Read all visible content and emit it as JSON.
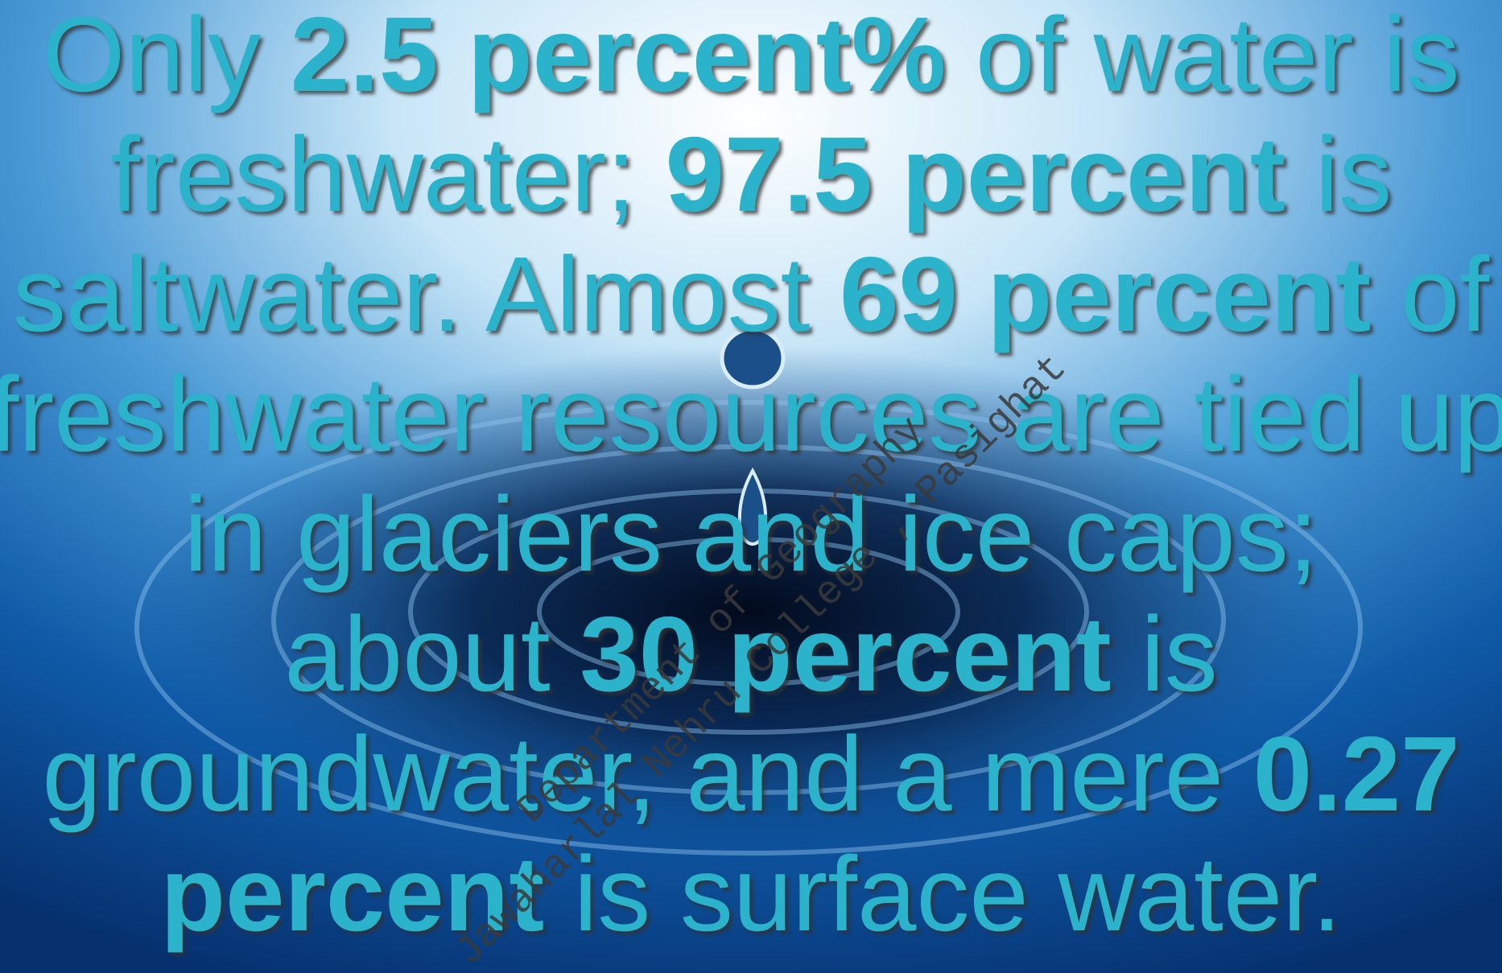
{
  "slide": {
    "lines": [
      [
        {
          "text": "Only ",
          "bold": false
        },
        {
          "text": "2.5 percent%",
          "bold": true
        },
        {
          "text": " of water is",
          "bold": false
        }
      ],
      [
        {
          "text": "freshwater; ",
          "bold": false
        },
        {
          "text": "97.5 percent",
          "bold": true
        },
        {
          "text": " is",
          "bold": false
        }
      ],
      [
        {
          "text": "saltwater. Almost ",
          "bold": false
        },
        {
          "text": "69 percent",
          "bold": true
        },
        {
          "text": " of",
          "bold": false
        }
      ],
      [
        {
          "text": "freshwater resources are tied up",
          "bold": false
        }
      ],
      [
        {
          "text": "in glaciers and ice caps;",
          "bold": false
        }
      ],
      [
        {
          "text": "about ",
          "bold": false
        },
        {
          "text": "30 percent",
          "bold": true
        },
        {
          "text": " is",
          "bold": false
        }
      ],
      [
        {
          "text": "groundwater, and a mere ",
          "bold": false
        },
        {
          "text": "0.27",
          "bold": true
        }
      ],
      [
        {
          "text": "percent",
          "bold": true
        },
        {
          "text": " is surface water.",
          "bold": false
        }
      ]
    ],
    "watermark": [
      "Department of Geography",
      "Jawaharlal Nehru College , Pasighat"
    ]
  }
}
